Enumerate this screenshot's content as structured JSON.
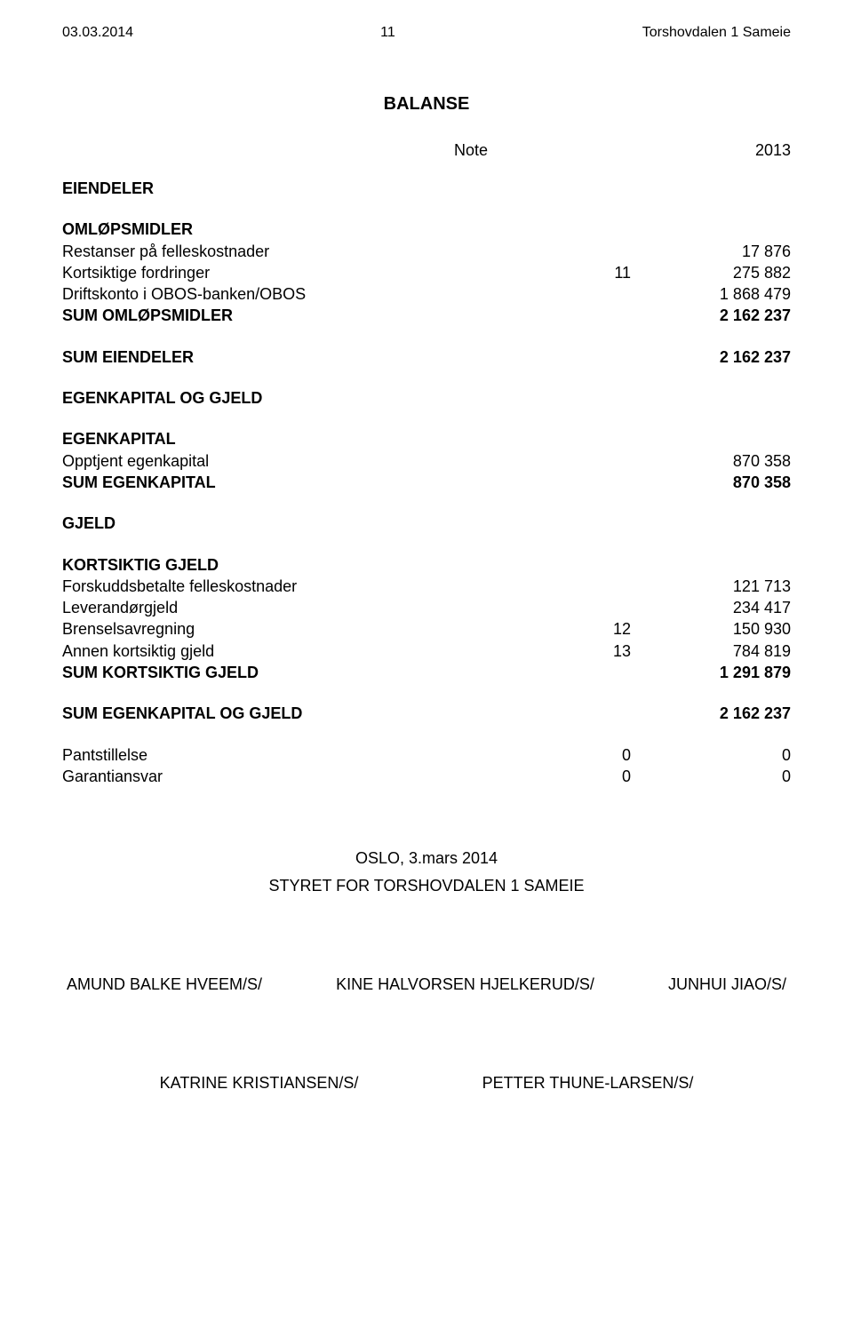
{
  "header": {
    "date": "03.03.2014",
    "page": "11",
    "org": "Torshovdalen 1 Sameie"
  },
  "title": "BALANSE",
  "columns": {
    "note": "Note",
    "year": "2013"
  },
  "sections": {
    "eiendeler": "EIENDELER",
    "omlop": {
      "heading": "OMLØPSMIDLER",
      "rows": [
        {
          "label": "Restanser på felleskostnader",
          "note": "",
          "val": "17 876"
        },
        {
          "label": "Kortsiktige fordringer",
          "note": "11",
          "val": "275 882"
        },
        {
          "label": "Driftskonto i OBOS-banken/OBOS",
          "note": "",
          "val": "1 868 479"
        }
      ],
      "sum": {
        "label": "SUM OMLØPSMIDLER",
        "val": "2 162 237"
      }
    },
    "sum_eiendeler": {
      "label": "SUM EIENDELER",
      "val": "2 162 237"
    },
    "egk_og_gjeld": "EGENKAPITAL OG GJELD",
    "egk": {
      "heading": "EGENKAPITAL",
      "rows": [
        {
          "label": "Opptjent egenkapital",
          "val": "870 358"
        }
      ],
      "sum": {
        "label": "SUM EGENKAPITAL",
        "val": "870 358"
      }
    },
    "gjeld": "GJELD",
    "kortsiktig": {
      "heading": "KORTSIKTIG GJELD",
      "rows": [
        {
          "label": "Forskuddsbetalte felleskostnader",
          "note": "",
          "val": "121 713"
        },
        {
          "label": "Leverandørgjeld",
          "note": "",
          "val": "234 417"
        },
        {
          "label": "Brenselsavregning",
          "note": "12",
          "val": "150 930"
        },
        {
          "label": "Annen kortsiktig gjeld",
          "note": "13",
          "val": "784 819"
        }
      ],
      "sum": {
        "label": "SUM KORTSIKTIG GJELD",
        "val": "1 291 879"
      }
    },
    "sum_egk_gjeld": {
      "label": "SUM EGENKAPITAL OG GJELD",
      "val": "2 162 237"
    },
    "pant": {
      "label": "Pantstillelse",
      "a": "0",
      "b": "0"
    },
    "garanti": {
      "label": "Garantiansvar",
      "a": "0",
      "b": "0"
    }
  },
  "footer": {
    "place_date": "OSLO, 3.mars 2014",
    "board": "STYRET FOR TORSHOVDALEN 1 SAMEIE",
    "sig1": "AMUND BALKE HVEEM/S/",
    "sig2": "KINE HALVORSEN HJELKERUD/S/",
    "sig3": "JUNHUI JIAO/S/",
    "sig4": "KATRINE KRISTIANSEN/S/",
    "sig5": "PETTER THUNE-LARSEN/S/"
  }
}
